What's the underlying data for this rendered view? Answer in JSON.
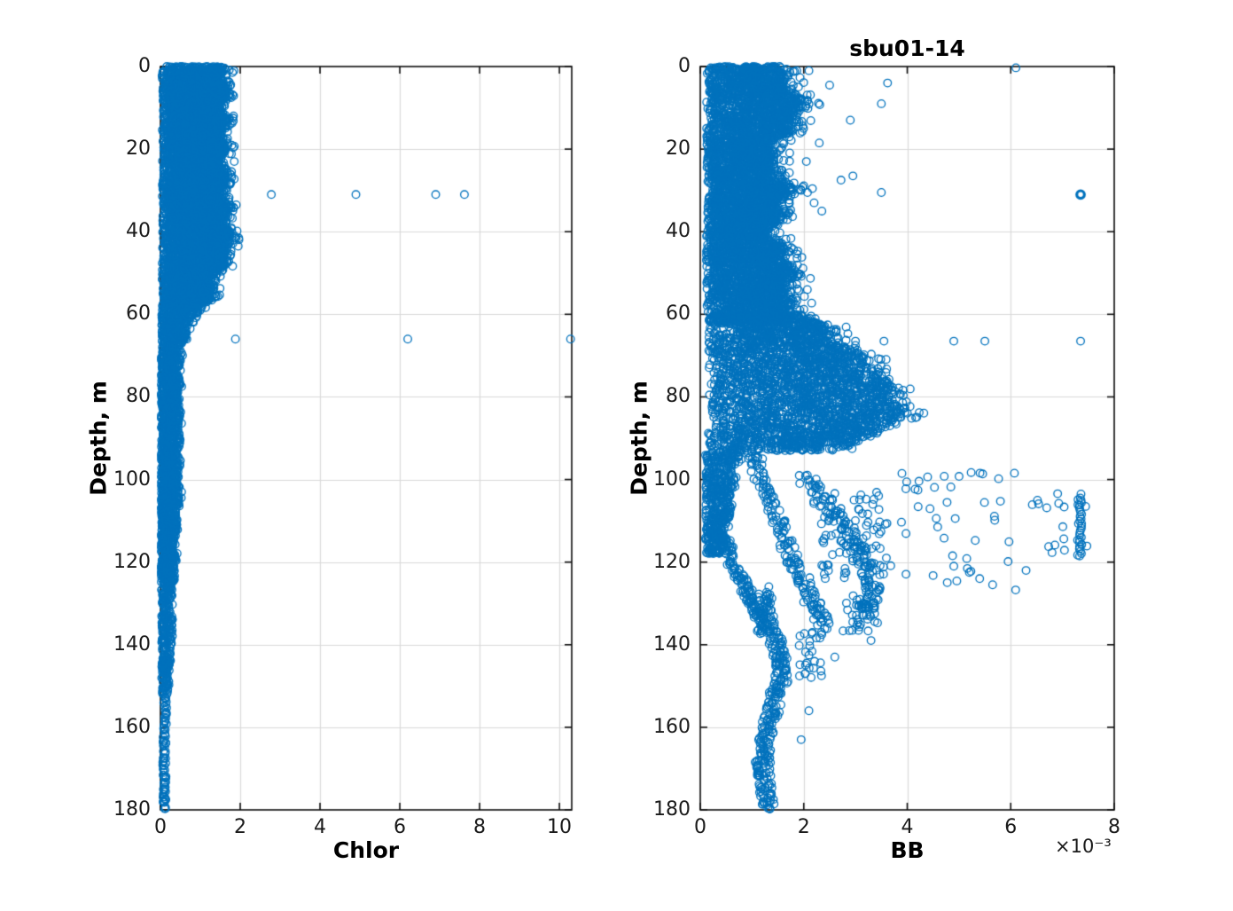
{
  "figure": {
    "background": "#ffffff",
    "marker_color": "#0072BD",
    "grid_color": "#d9d9d9",
    "axis_color": "#0f0f0f"
  },
  "chart_data": {
    "type": "scatter",
    "description": "Two vertical oceanographic profile scatter plots of open circles: Chlorophyll vs depth and backscatter (BB) vs depth for station sbu01-14. Depth axis inverted, 0 m at top to 180 m at bottom. Dense point clouds are described by procedural cluster specs (envelopes, chains, strips) plus explicit outlier points.",
    "plots": [
      {
        "title": "",
        "xlabel": "Chlor",
        "ylabel": "Depth, m",
        "xlim": [
          0,
          10.31
        ],
        "ylim": [
          0,
          180
        ],
        "y_inverted": true,
        "grid": true,
        "xticks": [
          0,
          2,
          4,
          6,
          8,
          10
        ],
        "xtick_labels": [
          "0",
          "2",
          "4",
          "6",
          "8",
          "10"
        ],
        "yticks": [
          0,
          20,
          40,
          60,
          80,
          100,
          120,
          140,
          160,
          180
        ],
        "ytick_labels": [
          "0",
          "20",
          "40",
          "60",
          "80",
          "100",
          "120",
          "140",
          "160",
          "180"
        ],
        "clusters": [
          {
            "type": "blob",
            "d": [
              0,
              58
            ],
            "x0": 0.04,
            "env": [
              [
                0,
                1.5
              ],
              [
                8,
                1.55
              ],
              [
                15,
                1.6
              ],
              [
                22,
                1.45
              ],
              [
                28,
                1.55
              ],
              [
                34,
                1.6
              ],
              [
                40,
                1.6
              ],
              [
                46,
                1.55
              ],
              [
                52,
                1.35
              ],
              [
                58,
                1.0
              ]
            ],
            "wiggle": 0.18,
            "p": 0.8,
            "tail": 0.32,
            "tail_frac": 0.05,
            "n": 6500
          },
          {
            "type": "blob",
            "d": [
              58,
              67
            ],
            "x0": 0.03,
            "env": [
              [
                58,
                1.0
              ],
              [
                61,
                0.8
              ],
              [
                64,
                0.62
              ],
              [
                67,
                0.5
              ]
            ],
            "wiggle": 0.06,
            "p": 1.0,
            "tail": 0.15,
            "tail_frac": 0.05,
            "n": 380
          },
          {
            "type": "blob",
            "d": [
              67,
              125
            ],
            "x0": 0.02,
            "env": [
              [
                67,
                0.5
              ],
              [
                80,
                0.46
              ],
              [
                95,
                0.44
              ],
              [
                110,
                0.4
              ],
              [
                125,
                0.32
              ]
            ],
            "wiggle": 0.05,
            "p": 1.05,
            "tail": 0.1,
            "tail_frac": 0.04,
            "n": 1700
          },
          {
            "type": "blob",
            "d": [
              125,
              152
            ],
            "x0": 0.03,
            "env": [
              [
                125,
                0.3
              ],
              [
                138,
                0.27
              ],
              [
                152,
                0.2
              ]
            ],
            "wiggle": 0.04,
            "p": 1.0,
            "tail": 0.05,
            "tail_frac": 0.03,
            "n": 300
          },
          {
            "type": "chain",
            "pts": [
              [
                0.13,
                152
              ],
              [
                0.11,
                158
              ],
              [
                0.1,
                164
              ],
              [
                0.09,
                170
              ],
              [
                0.11,
                175
              ],
              [
                0.09,
                180
              ]
            ],
            "jx": 0.04,
            "jd": 0.8,
            "n": 80
          },
          {
            "type": "points",
            "pts": [
              [
                1.85,
                23
              ],
              [
                2.78,
                31
              ],
              [
                4.9,
                31
              ],
              [
                6.9,
                31
              ],
              [
                7.62,
                31
              ],
              [
                1.9,
                33.5
              ],
              [
                1.95,
                43.5
              ],
              [
                1.88,
                66
              ],
              [
                6.2,
                66
              ],
              [
                10.28,
                66
              ]
            ]
          }
        ]
      },
      {
        "title": "sbu01-14",
        "xlabel": "BB",
        "ylabel": "Depth, m",
        "x_multiplier": "×10⁻³",
        "x_unit_scale": "1e-3",
        "xlim": [
          0,
          8
        ],
        "ylim": [
          0,
          180
        ],
        "y_inverted": true,
        "grid": true,
        "xticks": [
          0,
          2,
          4,
          6,
          8
        ],
        "xtick_labels": [
          "0",
          "2",
          "4",
          "6",
          "8"
        ],
        "yticks": [
          0,
          20,
          40,
          60,
          80,
          100,
          120,
          140,
          160,
          180
        ],
        "ytick_labels": [
          "0",
          "20",
          "40",
          "60",
          "80",
          "100",
          "120",
          "140",
          "160",
          "180"
        ],
        "clusters": [
          {
            "type": "blob",
            "d": [
              0,
              62
            ],
            "x0": 0.12,
            "env": [
              [
                0,
                1.5
              ],
              [
                6,
                1.7
              ],
              [
                12,
                1.8
              ],
              [
                18,
                1.5
              ],
              [
                24,
                1.35
              ],
              [
                30,
                1.6
              ],
              [
                36,
                1.5
              ],
              [
                42,
                1.4
              ],
              [
                48,
                1.6
              ],
              [
                54,
                1.75
              ],
              [
                62,
                1.6
              ]
            ],
            "wiggle": 0.2,
            "p": 0.8,
            "tail": 0.5,
            "tail_frac": 0.06,
            "n": 5200
          },
          {
            "type": "blob",
            "d": [
              60,
              93
            ],
            "x0": 0.15,
            "env": [
              [
                60,
                2.1
              ],
              [
                66,
                2.5
              ],
              [
                72,
                3.1
              ],
              [
                78,
                3.7
              ],
              [
                84,
                3.8
              ],
              [
                89,
                3.2
              ],
              [
                93,
                2.3
              ]
            ],
            "wiggle": 0.25,
            "p": 0.78,
            "tail": 0.5,
            "tail_frac": 0.05,
            "n": 2900
          },
          {
            "type": "blob",
            "d": [
              93,
              118
            ],
            "x0": 0.1,
            "env": [
              [
                93,
                0.8
              ],
              [
                100,
                0.6
              ],
              [
                110,
                0.52
              ],
              [
                118,
                0.45
              ]
            ],
            "wiggle": 0.08,
            "p": 0.9,
            "tail": 0.15,
            "tail_frac": 0.05,
            "n": 520
          },
          {
            "type": "chain",
            "pts": [
              [
                0.45,
                114
              ],
              [
                0.65,
                121
              ],
              [
                0.9,
                127
              ],
              [
                1.1,
                132
              ],
              [
                1.2,
                137
              ]
            ],
            "jx": 0.1,
            "jd": 1.2,
            "n": 130
          },
          {
            "type": "chain",
            "pts": [
              [
                1.0,
                93
              ],
              [
                1.25,
                102
              ],
              [
                1.55,
                112
              ],
              [
                1.85,
                121
              ],
              [
                2.15,
                129
              ],
              [
                2.4,
                136
              ]
            ],
            "jx": 0.14,
            "jd": 1.5,
            "n": 170
          },
          {
            "type": "chain",
            "pts": [
              [
                2.0,
                99
              ],
              [
                2.5,
                107
              ],
              [
                2.9,
                114
              ],
              [
                3.2,
                120
              ],
              [
                3.35,
                127
              ],
              [
                3.05,
                134
              ]
            ],
            "jx": 0.16,
            "jd": 1.5,
            "n": 150
          },
          {
            "type": "rect",
            "x": [
              2.3,
              3.7
            ],
            "d": [
              103,
              124
            ],
            "n": 80
          },
          {
            "type": "rect",
            "x": [
              3.8,
              6.3
            ],
            "d": [
              98,
              127
            ],
            "n": 42
          },
          {
            "type": "rect",
            "x": [
              6.4,
              7.5
            ],
            "d": [
              103,
              121
            ],
            "n": 22
          },
          {
            "type": "strip",
            "x": 7.35,
            "d": [
              104.5,
              118.5
            ],
            "n": 26,
            "jx": 0.025
          },
          {
            "type": "chain",
            "pts": [
              [
                1.25,
                127
              ],
              [
                1.3,
                134
              ],
              [
                1.5,
                141
              ],
              [
                1.6,
                147
              ],
              [
                1.45,
                153
              ],
              [
                1.3,
                160
              ],
              [
                1.2,
                167
              ],
              [
                1.25,
                173
              ],
              [
                1.3,
                180
              ]
            ],
            "jx": 0.14,
            "jd": 1.2,
            "n": 300
          },
          {
            "type": "rect",
            "x": [
              2.7,
              3.45
            ],
            "d": [
              128,
              137
            ],
            "n": 30
          },
          {
            "type": "rect",
            "x": [
              1.9,
              2.35
            ],
            "d": [
              137,
              148
            ],
            "n": 26
          },
          {
            "type": "points",
            "pts": [
              [
                3.3,
                139
              ],
              [
                2.6,
                143
              ],
              [
                2.1,
                156
              ],
              [
                1.95,
                163
              ],
              [
                5.4,
                124
              ],
              [
                5.65,
                125.5
              ],
              [
                4.9,
                121
              ],
              [
                5.2,
                122.5
              ]
            ]
          },
          {
            "type": "points",
            "pts": [
              [
                3.0,
                66.5
              ],
              [
                3.55,
                66.5
              ],
              [
                4.9,
                66.5
              ],
              [
                5.5,
                66.5
              ],
              [
                7.35,
                66.5
              ]
            ]
          },
          {
            "type": "points",
            "pts": [
              [
                0.28,
                0.3
              ],
              [
                2.1,
                1
              ],
              [
                6.1,
                0.3
              ],
              [
                2.5,
                4.5
              ],
              [
                3.62,
                4
              ],
              [
                3.5,
                9
              ],
              [
                2.9,
                13
              ],
              [
                2.05,
                23
              ],
              [
                2.72,
                27.5
              ],
              [
                2.95,
                26.5
              ],
              [
                3.5,
                30.5
              ],
              [
                2.3,
                18.5
              ],
              [
                1.95,
                30
              ],
              [
                2.2,
                33
              ],
              [
                2.35,
                35
              ]
            ]
          },
          {
            "type": "points",
            "lw": 3.2,
            "pts": [
              [
                7.35,
                31
              ]
            ]
          }
        ]
      }
    ],
    "marker": {
      "shape": "open-circle",
      "radius_px": 4.3,
      "line_width": 1.3
    }
  }
}
